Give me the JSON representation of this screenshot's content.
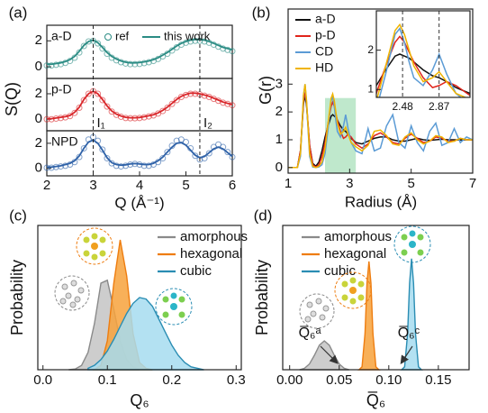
{
  "chart_data": [
    {
      "type": "stacked-line",
      "panel_label": "(a)",
      "y_label": "S(Q)",
      "x_label": "Q (Å⁻¹)",
      "xlim": [
        2,
        6
      ],
      "xticks": [
        2,
        3,
        4,
        5,
        6
      ],
      "legend": {
        "marker": "ref",
        "line": "this work"
      },
      "x": [
        2.0,
        2.1,
        2.2,
        2.3,
        2.4,
        2.5,
        2.6,
        2.7,
        2.8,
        2.9,
        3.0,
        3.1,
        3.2,
        3.3,
        3.4,
        3.5,
        3.6,
        3.7,
        3.8,
        3.9,
        4.0,
        4.1,
        4.2,
        4.3,
        4.4,
        4.5,
        4.6,
        4.7,
        4.8,
        4.9,
        5.0,
        5.1,
        5.2,
        5.3,
        5.4,
        5.5,
        5.6,
        5.7,
        5.8,
        5.9,
        6.0
      ],
      "panels": [
        {
          "name": "a-D",
          "color": "#2b8c84",
          "ylim": [
            -0.9,
            3.2
          ],
          "yticks": [
            0,
            2
          ],
          "ref": [
            0.1,
            0.1,
            0.15,
            0.2,
            0.3,
            0.45,
            0.7,
            1.1,
            1.6,
            1.95,
            2.0,
            1.8,
            1.4,
            1.0,
            0.7,
            0.5,
            0.35,
            0.25,
            0.2,
            0.2,
            0.22,
            0.28,
            0.35,
            0.45,
            0.6,
            0.8,
            1.0,
            1.25,
            1.5,
            1.7,
            1.85,
            1.95,
            2.0,
            2.0,
            1.95,
            1.85,
            1.7,
            1.55,
            1.4,
            1.3,
            1.2
          ],
          "values": [
            0.2,
            0.2,
            0.25,
            0.3,
            0.4,
            0.55,
            0.8,
            1.2,
            1.65,
            1.95,
            2.05,
            1.85,
            1.5,
            1.1,
            0.8,
            0.6,
            0.45,
            0.35,
            0.3,
            0.3,
            0.32,
            0.38,
            0.45,
            0.55,
            0.7,
            0.9,
            1.1,
            1.35,
            1.6,
            1.8,
            1.95,
            2.05,
            2.1,
            2.1,
            2.05,
            1.95,
            1.8,
            1.65,
            1.5,
            1.4,
            1.3
          ]
        },
        {
          "name": "p-D",
          "color": "#d9262a",
          "ylim": [
            -0.9,
            3.2
          ],
          "yticks": [
            0,
            2
          ],
          "ref": [
            0.0,
            0.0,
            0.05,
            0.1,
            0.15,
            0.25,
            0.5,
            0.9,
            1.5,
            2.0,
            2.2,
            2.0,
            1.5,
            1.0,
            0.6,
            0.35,
            0.2,
            0.1,
            0.08,
            0.08,
            0.1,
            0.15,
            0.22,
            0.3,
            0.45,
            0.65,
            0.9,
            1.2,
            1.5,
            1.75,
            1.9,
            2.0,
            2.0,
            1.95,
            1.85,
            1.75,
            1.6,
            1.45,
            1.3,
            1.2,
            1.1
          ],
          "values": [
            0.05,
            0.05,
            0.1,
            0.15,
            0.2,
            0.3,
            0.55,
            0.95,
            1.55,
            2.0,
            2.2,
            2.0,
            1.55,
            1.05,
            0.65,
            0.4,
            0.25,
            0.15,
            0.12,
            0.12,
            0.14,
            0.2,
            0.27,
            0.35,
            0.5,
            0.7,
            0.95,
            1.25,
            1.55,
            1.8,
            1.95,
            2.05,
            2.05,
            2.0,
            1.9,
            1.8,
            1.65,
            1.5,
            1.35,
            1.25,
            1.15
          ]
        },
        {
          "name": "NPD",
          "color": "#2f62a8",
          "ylim": [
            -0.6,
            3.0
          ],
          "yticks": [
            0,
            2
          ],
          "ref": [
            0.05,
            0.05,
            0.1,
            0.15,
            0.2,
            0.3,
            0.5,
            0.9,
            1.6,
            2.3,
            2.5,
            2.2,
            1.5,
            0.8,
            0.4,
            0.2,
            0.15,
            0.2,
            0.3,
            0.35,
            0.3,
            0.2,
            0.2,
            0.3,
            0.5,
            0.8,
            1.3,
            1.8,
            2.2,
            2.3,
            2.1,
            1.6,
            1.0,
            0.7,
            0.8,
            1.2,
            1.7,
            1.9,
            1.7,
            1.3,
            0.9
          ],
          "values": [
            0.1,
            0.1,
            0.15,
            0.2,
            0.3,
            0.4,
            0.6,
            1.0,
            1.6,
            2.1,
            2.25,
            2.0,
            1.45,
            0.85,
            0.45,
            0.3,
            0.25,
            0.28,
            0.35,
            0.38,
            0.35,
            0.3,
            0.3,
            0.4,
            0.6,
            0.9,
            1.3,
            1.7,
            2.0,
            2.05,
            1.85,
            1.45,
            1.05,
            0.85,
            0.95,
            1.25,
            1.55,
            1.7,
            1.55,
            1.25,
            0.95
          ]
        }
      ],
      "vlines": [
        {
          "value": 3.0,
          "label": "I₁"
        },
        {
          "value": 5.3,
          "label": "I₂"
        }
      ]
    },
    {
      "type": "line",
      "panel_label": "(b)",
      "y_label": "G(r)",
      "x_label": "Radius (Å)",
      "xlim": [
        1,
        7
      ],
      "xticks": [
        1,
        3,
        5,
        7
      ],
      "ylim": [
        -0.2,
        5.7
      ],
      "yticks": [
        0,
        1,
        2,
        3
      ],
      "x": [
        1.0,
        1.3,
        1.4,
        1.5,
        1.55,
        1.6,
        1.7,
        1.8,
        1.9,
        2.0,
        2.1,
        2.2,
        2.3,
        2.4,
        2.45,
        2.5,
        2.55,
        2.6,
        2.7,
        2.8,
        2.87,
        2.95,
        3.05,
        3.2,
        3.4,
        3.6,
        3.8,
        4.0,
        4.2,
        4.4,
        4.6,
        4.8,
        5.0,
        5.2,
        5.4,
        5.6,
        5.8,
        6.0,
        6.2,
        6.4,
        6.6,
        6.8,
        7.0
      ],
      "series": [
        {
          "name": "a-D",
          "color": "#111111",
          "values": [
            0,
            0,
            0.6,
            2.3,
            2.6,
            2.2,
            0.8,
            0.15,
            0.05,
            0.2,
            0.6,
            1.1,
            1.5,
            1.85,
            1.9,
            1.85,
            1.8,
            1.7,
            1.5,
            1.35,
            1.3,
            1.2,
            1.05,
            0.9,
            0.85,
            0.95,
            1.05,
            1.1,
            1.1,
            1.0,
            0.95,
            0.95,
            1.0,
            1.05,
            1.0,
            0.98,
            1.0,
            1.02,
            1.0,
            1.0,
            0.99,
            1.0,
            1.0
          ]
        },
        {
          "name": "p-D",
          "color": "#e0241b",
          "values": [
            0,
            0,
            0.6,
            2.4,
            2.7,
            2.3,
            0.8,
            0.1,
            0.02,
            0.1,
            0.4,
            0.9,
            1.6,
            2.2,
            2.35,
            2.2,
            1.95,
            1.7,
            1.3,
            1.05,
            1.1,
            1.2,
            1.1,
            0.85,
            0.7,
            0.85,
            1.15,
            1.25,
            1.1,
            0.9,
            0.85,
            1.05,
            1.2,
            1.05,
            0.9,
            0.95,
            1.1,
            1.05,
            0.95,
            0.95,
            1.05,
            1.0,
            1.0
          ]
        },
        {
          "name": "CD",
          "color": "#5b9bd5",
          "values": [
            0,
            0,
            0.4,
            2.6,
            3.0,
            2.3,
            0.4,
            0.02,
            0,
            0.02,
            0.1,
            0.5,
            1.4,
            2.4,
            2.55,
            2.2,
            1.7,
            1.3,
            1.1,
            1.5,
            1.9,
            1.4,
            0.9,
            0.6,
            0.5,
            1.4,
            0.6,
            0.7,
            1.5,
            1.9,
            0.9,
            0.7,
            1.5,
            0.9,
            0.6,
            1.3,
            1.6,
            0.8,
            0.9,
            1.4,
            0.9,
            1.1,
            1.0
          ]
        },
        {
          "name": "HD",
          "color": "#f0b400",
          "values": [
            0,
            0,
            0.5,
            2.6,
            3.0,
            2.4,
            0.5,
            0.05,
            0,
            0.05,
            0.2,
            0.7,
            1.6,
            2.5,
            2.65,
            2.4,
            2.0,
            1.6,
            1.2,
            1.3,
            1.45,
            1.2,
            0.9,
            0.75,
            0.6,
            0.8,
            1.3,
            1.35,
            1.15,
            0.85,
            0.8,
            1.1,
            1.25,
            1.0,
            0.85,
            0.95,
            1.15,
            1.1,
            0.9,
            0.95,
            1.05,
            1.0,
            1.0
          ]
        }
      ],
      "highlight": {
        "xlim": [
          2.2,
          3.2
        ],
        "ylim": [
          -0.2,
          2.5
        ],
        "color": "#bfe8cc"
      },
      "inset": {
        "xlim": [
          2.2,
          3.2
        ],
        "ylim": [
          0.8,
          3.0
        ],
        "xticks": [
          2.48,
          2.87
        ],
        "yticks": [
          1,
          2
        ]
      }
    },
    {
      "type": "area",
      "panel_label": "(c)",
      "y_label": "Probability",
      "x_label": "Q₆",
      "xlim": [
        -0.008,
        0.308
      ],
      "xticks": [
        {
          "value": 0,
          "label": "0.0"
        },
        0.1,
        0.2,
        0.3
      ],
      "ylim": [
        0,
        1
      ],
      "series": [
        {
          "name": "amorphous",
          "color": "#8a8a8a",
          "fill": "#c4c4c4",
          "x": [
            0.04,
            0.05,
            0.06,
            0.07,
            0.08,
            0.09,
            0.1,
            0.11,
            0.12,
            0.13,
            0.14,
            0.15
          ],
          "values": [
            0,
            0.005,
            0.03,
            0.12,
            0.32,
            0.6,
            0.62,
            0.42,
            0.2,
            0.07,
            0.02,
            0
          ]
        },
        {
          "name": "hexagonal",
          "color": "#ee7d10",
          "fill": "#f7a23c",
          "x": [
            0.08,
            0.09,
            0.1,
            0.11,
            0.12,
            0.13,
            0.14,
            0.15,
            0.16,
            0.17
          ],
          "values": [
            0,
            0.03,
            0.2,
            0.6,
            0.9,
            0.65,
            0.25,
            0.05,
            0.01,
            0
          ]
        },
        {
          "name": "cubic",
          "color": "#2a8db3",
          "fill": "#a6dcf0",
          "x": [
            0.07,
            0.08,
            0.09,
            0.1,
            0.11,
            0.12,
            0.13,
            0.14,
            0.15,
            0.16,
            0.17,
            0.18,
            0.19,
            0.2,
            0.21,
            0.22,
            0.23,
            0.24,
            0.25
          ],
          "values": [
            0.01,
            0.03,
            0.07,
            0.13,
            0.21,
            0.3,
            0.39,
            0.46,
            0.5,
            0.49,
            0.44,
            0.35,
            0.26,
            0.17,
            0.1,
            0.05,
            0.02,
            0.01,
            0
          ]
        }
      ]
    },
    {
      "type": "area",
      "panel_label": "(d)",
      "y_label": "Probability",
      "x_label": "Q̅₆",
      "xlim": [
        -0.007,
        0.181
      ],
      "xticks": [
        {
          "value": 0,
          "label": "0.00"
        },
        0.05,
        {
          "value": 0.1,
          "label": "0.10"
        },
        0.15
      ],
      "ylim": [
        0,
        1
      ],
      "series": [
        {
          "name": "amorphous",
          "color": "#8a8a8a",
          "fill": "#c4c4c4",
          "x": [
            0.01,
            0.015,
            0.02,
            0.025,
            0.03,
            0.035,
            0.04,
            0.045,
            0.05,
            0.055,
            0.06
          ],
          "values": [
            0,
            0.01,
            0.04,
            0.1,
            0.17,
            0.2,
            0.17,
            0.1,
            0.04,
            0.01,
            0
          ]
        },
        {
          "name": "hexagonal",
          "color": "#ee7d10",
          "fill": "#f7a23c",
          "x": [
            0.07,
            0.073,
            0.076,
            0.078,
            0.08,
            0.082,
            0.084,
            0.087,
            0.09
          ],
          "values": [
            0,
            0.02,
            0.25,
            0.6,
            0.75,
            0.6,
            0.25,
            0.02,
            0
          ]
        },
        {
          "name": "cubic",
          "color": "#2a8db3",
          "fill": "#a6dcf0",
          "x": [
            0.113,
            0.116,
            0.119,
            0.121,
            0.123,
            0.125,
            0.127,
            0.13,
            0.133
          ],
          "values": [
            0,
            0.02,
            0.25,
            0.6,
            0.77,
            0.6,
            0.25,
            0.02,
            0
          ]
        }
      ],
      "annotations": [
        "Q̅₆ᵃ",
        "Q̅₆ᶜ"
      ]
    }
  ]
}
